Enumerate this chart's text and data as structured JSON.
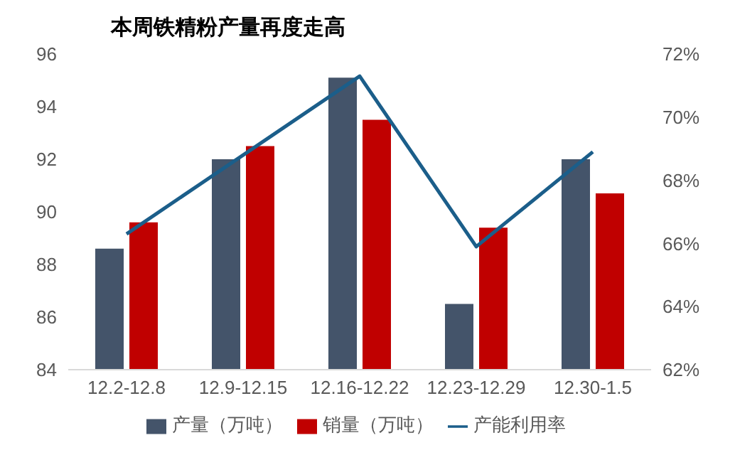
{
  "chart_data": {
    "type": "bar",
    "title": "本周铁精粉产量再度走高",
    "categories": [
      "12.2-12.8",
      "12.9-12.15",
      "12.16-12.22",
      "12.23-12.29",
      "12.30-1.5"
    ],
    "series": [
      {
        "name": "产量（万吨）",
        "color": "#44546a",
        "values": [
          88.6,
          92.0,
          95.1,
          86.5,
          92.0
        ]
      },
      {
        "name": "销量（万吨）",
        "color": "#c00000",
        "values": [
          89.6,
          92.5,
          93.5,
          89.4,
          90.7
        ]
      },
      {
        "name": "产能利用率",
        "type": "line",
        "axis": "y2",
        "color": "#1b5e8a",
        "values": [
          66.3,
          68.8,
          71.3,
          65.9,
          68.9
        ]
      }
    ],
    "ylim": [
      84,
      96
    ],
    "yticks": [
      84,
      86,
      88,
      90,
      92,
      94,
      96
    ],
    "y2lim": [
      62,
      72
    ],
    "y2ticks": [
      {
        "value": 62,
        "label": "62%"
      },
      {
        "value": 64,
        "label": "64%"
      },
      {
        "value": 66,
        "label": "66%"
      },
      {
        "value": 68,
        "label": "68%"
      },
      {
        "value": 70,
        "label": "70%"
      },
      {
        "value": 72,
        "label": "72%"
      }
    ],
    "legend": "bottom",
    "grid": false,
    "marker": "none"
  }
}
